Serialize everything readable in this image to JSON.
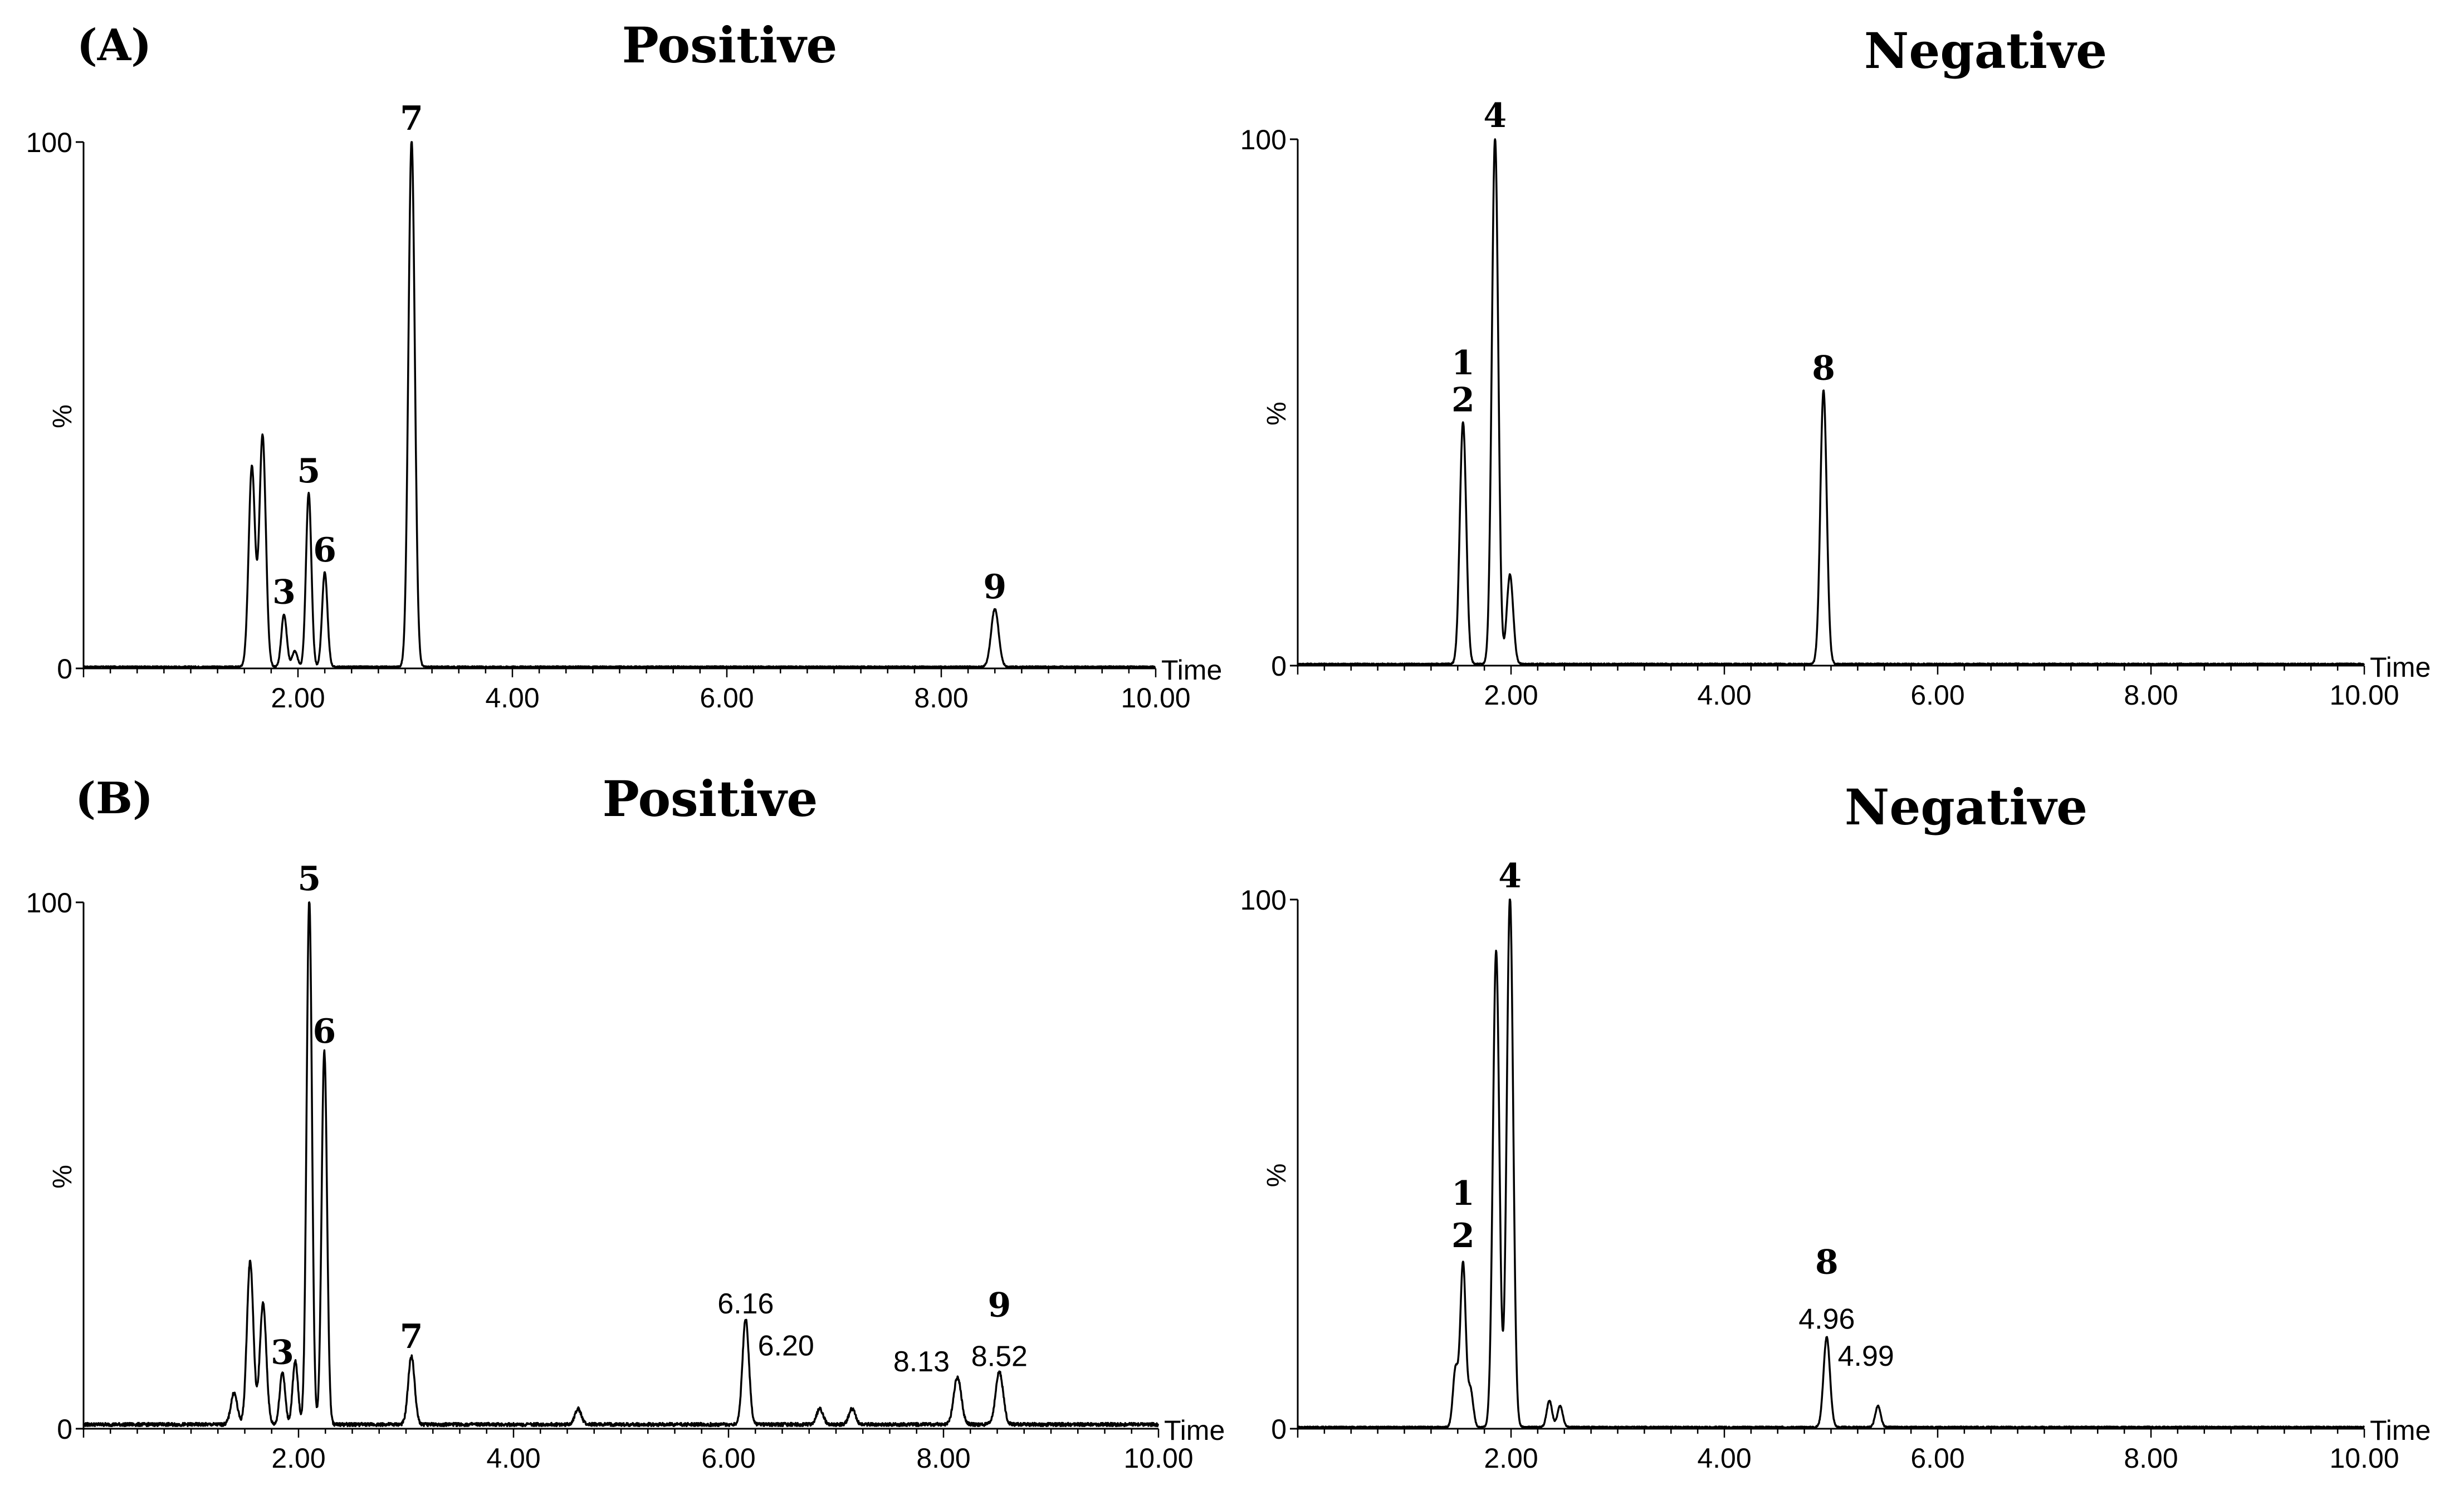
{
  "figure": {
    "colors": {
      "line": "#000000",
      "background": "#ffffff"
    }
  },
  "chart_data": [
    {
      "type": "line",
      "id": "A-positive",
      "panel_label": "(A)",
      "title": "Positive",
      "xlabel": "Time",
      "ylabel": "%",
      "xlim": [
        0,
        10
      ],
      "ylim": [
        0,
        100
      ],
      "xticks": [
        "2.00",
        "4.00",
        "6.00",
        "8.00",
        "10.00"
      ],
      "yticks": [
        "0",
        "100"
      ],
      "series": [
        {
          "name": "trace",
          "baseline": 0.3,
          "peaks": [
            {
              "rt": 1.57,
              "h": 38,
              "w": 0.03
            },
            {
              "rt": 1.67,
              "h": 44,
              "w": 0.03
            },
            {
              "rt": 1.87,
              "h": 10,
              "w": 0.025
            },
            {
              "rt": 1.97,
              "h": 3,
              "w": 0.025
            },
            {
              "rt": 2.1,
              "h": 33,
              "w": 0.025
            },
            {
              "rt": 2.25,
              "h": 18,
              "w": 0.025
            },
            {
              "rt": 3.06,
              "h": 100,
              "w": 0.03
            },
            {
              "rt": 8.5,
              "h": 11,
              "w": 0.035
            }
          ]
        }
      ],
      "annotations": [
        {
          "text": "3",
          "x": 1.87,
          "y": 10
        },
        {
          "text": "5",
          "x": 2.1,
          "y": 33
        },
        {
          "text": "6",
          "x": 2.25,
          "y": 18
        },
        {
          "text": "7",
          "x": 3.06,
          "y": 100
        },
        {
          "text": "9",
          "x": 8.5,
          "y": 11
        }
      ]
    },
    {
      "type": "line",
      "id": "A-negative",
      "title": "Negative",
      "xlabel": "Time",
      "ylabel": "%",
      "xlim": [
        0,
        10
      ],
      "ylim": [
        0,
        100
      ],
      "xticks": [
        "2.00",
        "4.00",
        "6.00",
        "8.00",
        "10.00"
      ],
      "yticks": [
        "0",
        "100"
      ],
      "series": [
        {
          "name": "trace",
          "baseline": 0.3,
          "peaks": [
            {
              "rt": 1.55,
              "h": 46,
              "w": 0.03
            },
            {
              "rt": 1.85,
              "h": 100,
              "w": 0.03
            },
            {
              "rt": 1.99,
              "h": 17,
              "w": 0.03
            },
            {
              "rt": 4.93,
              "h": 52,
              "w": 0.03
            }
          ]
        }
      ],
      "annotations": [
        {
          "text": "1",
          "x": 1.55,
          "y": 53
        },
        {
          "text": "2",
          "x": 1.55,
          "y": 46
        },
        {
          "text": "4",
          "x": 1.85,
          "y": 100
        },
        {
          "text": "8",
          "x": 4.93,
          "y": 52
        }
      ]
    },
    {
      "type": "line",
      "id": "B-positive",
      "panel_label": "(B)",
      "title": "Positive",
      "xlabel": "Time",
      "ylabel": "%",
      "xlim": [
        0,
        10
      ],
      "ylim": [
        0,
        100
      ],
      "xticks": [
        "2.00",
        "4.00",
        "6.00",
        "8.00",
        "10.00"
      ],
      "yticks": [
        "0",
        "100"
      ],
      "series": [
        {
          "name": "trace",
          "baseline": 0.8,
          "peaks": [
            {
              "rt": 1.4,
              "h": 6,
              "w": 0.03
            },
            {
              "rt": 1.55,
              "h": 31,
              "w": 0.03
            },
            {
              "rt": 1.67,
              "h": 23,
              "w": 0.03
            },
            {
              "rt": 1.85,
              "h": 10,
              "w": 0.025
            },
            {
              "rt": 1.97,
              "h": 12,
              "w": 0.025
            },
            {
              "rt": 2.1,
              "h": 100,
              "w": 0.025
            },
            {
              "rt": 2.24,
              "h": 71,
              "w": 0.025
            },
            {
              "rt": 3.05,
              "h": 13,
              "w": 0.03
            },
            {
              "rt": 4.6,
              "h": 3,
              "w": 0.03
            },
            {
              "rt": 6.16,
              "h": 20,
              "w": 0.03
            },
            {
              "rt": 6.85,
              "h": 3,
              "w": 0.03
            },
            {
              "rt": 7.15,
              "h": 3,
              "w": 0.03
            },
            {
              "rt": 8.13,
              "h": 9,
              "w": 0.035
            },
            {
              "rt": 8.52,
              "h": 10,
              "w": 0.035
            }
          ]
        }
      ],
      "annotations": [
        {
          "text": "3",
          "x": 1.85,
          "y": 10
        },
        {
          "text": "5",
          "x": 2.1,
          "y": 100
        },
        {
          "text": "6",
          "x": 2.24,
          "y": 71
        },
        {
          "text": "7",
          "x": 3.05,
          "y": 13
        },
        {
          "text": "9",
          "x": 8.52,
          "y": 19
        }
      ],
      "value_labels": [
        {
          "text": "6.16",
          "x": 6.16,
          "y": 20,
          "anchor": "middle"
        },
        {
          "text": "6.20",
          "x": 6.2,
          "y": 12,
          "anchor": "start"
        },
        {
          "text": "8.13",
          "x": 8.13,
          "y": 9,
          "anchor": "end"
        },
        {
          "text": "8.52",
          "x": 8.52,
          "y": 10,
          "anchor": "middle"
        }
      ]
    },
    {
      "type": "line",
      "id": "B-negative",
      "title": "Negative",
      "xlabel": "Time",
      "ylabel": "%",
      "xlim": [
        0,
        10
      ],
      "ylim": [
        0,
        100
      ],
      "xticks": [
        "2.00",
        "4.00",
        "6.00",
        "8.00",
        "10.00"
      ],
      "yticks": [
        "0",
        "100"
      ],
      "series": [
        {
          "name": "trace",
          "baseline": 0.3,
          "peaks": [
            {
              "rt": 1.48,
              "h": 11,
              "w": 0.025
            },
            {
              "rt": 1.55,
              "h": 31,
              "w": 0.025
            },
            {
              "rt": 1.62,
              "h": 7,
              "w": 0.025
            },
            {
              "rt": 1.86,
              "h": 90,
              "w": 0.03
            },
            {
              "rt": 1.99,
              "h": 100,
              "w": 0.03
            },
            {
              "rt": 2.36,
              "h": 5,
              "w": 0.025
            },
            {
              "rt": 2.46,
              "h": 4,
              "w": 0.025
            },
            {
              "rt": 4.96,
              "h": 17,
              "w": 0.03
            },
            {
              "rt": 5.44,
              "h": 4,
              "w": 0.025
            }
          ]
        }
      ],
      "annotations": [
        {
          "text": "1",
          "x": 1.55,
          "y": 40
        },
        {
          "text": "2",
          "x": 1.55,
          "y": 32
        },
        {
          "text": "4",
          "x": 1.99,
          "y": 100
        },
        {
          "text": "8",
          "x": 4.96,
          "y": 27
        }
      ],
      "value_labels": [
        {
          "text": "4.96",
          "x": 4.96,
          "y": 17,
          "anchor": "middle"
        },
        {
          "text": "4.99",
          "x": 4.99,
          "y": 10,
          "anchor": "start"
        }
      ]
    }
  ]
}
